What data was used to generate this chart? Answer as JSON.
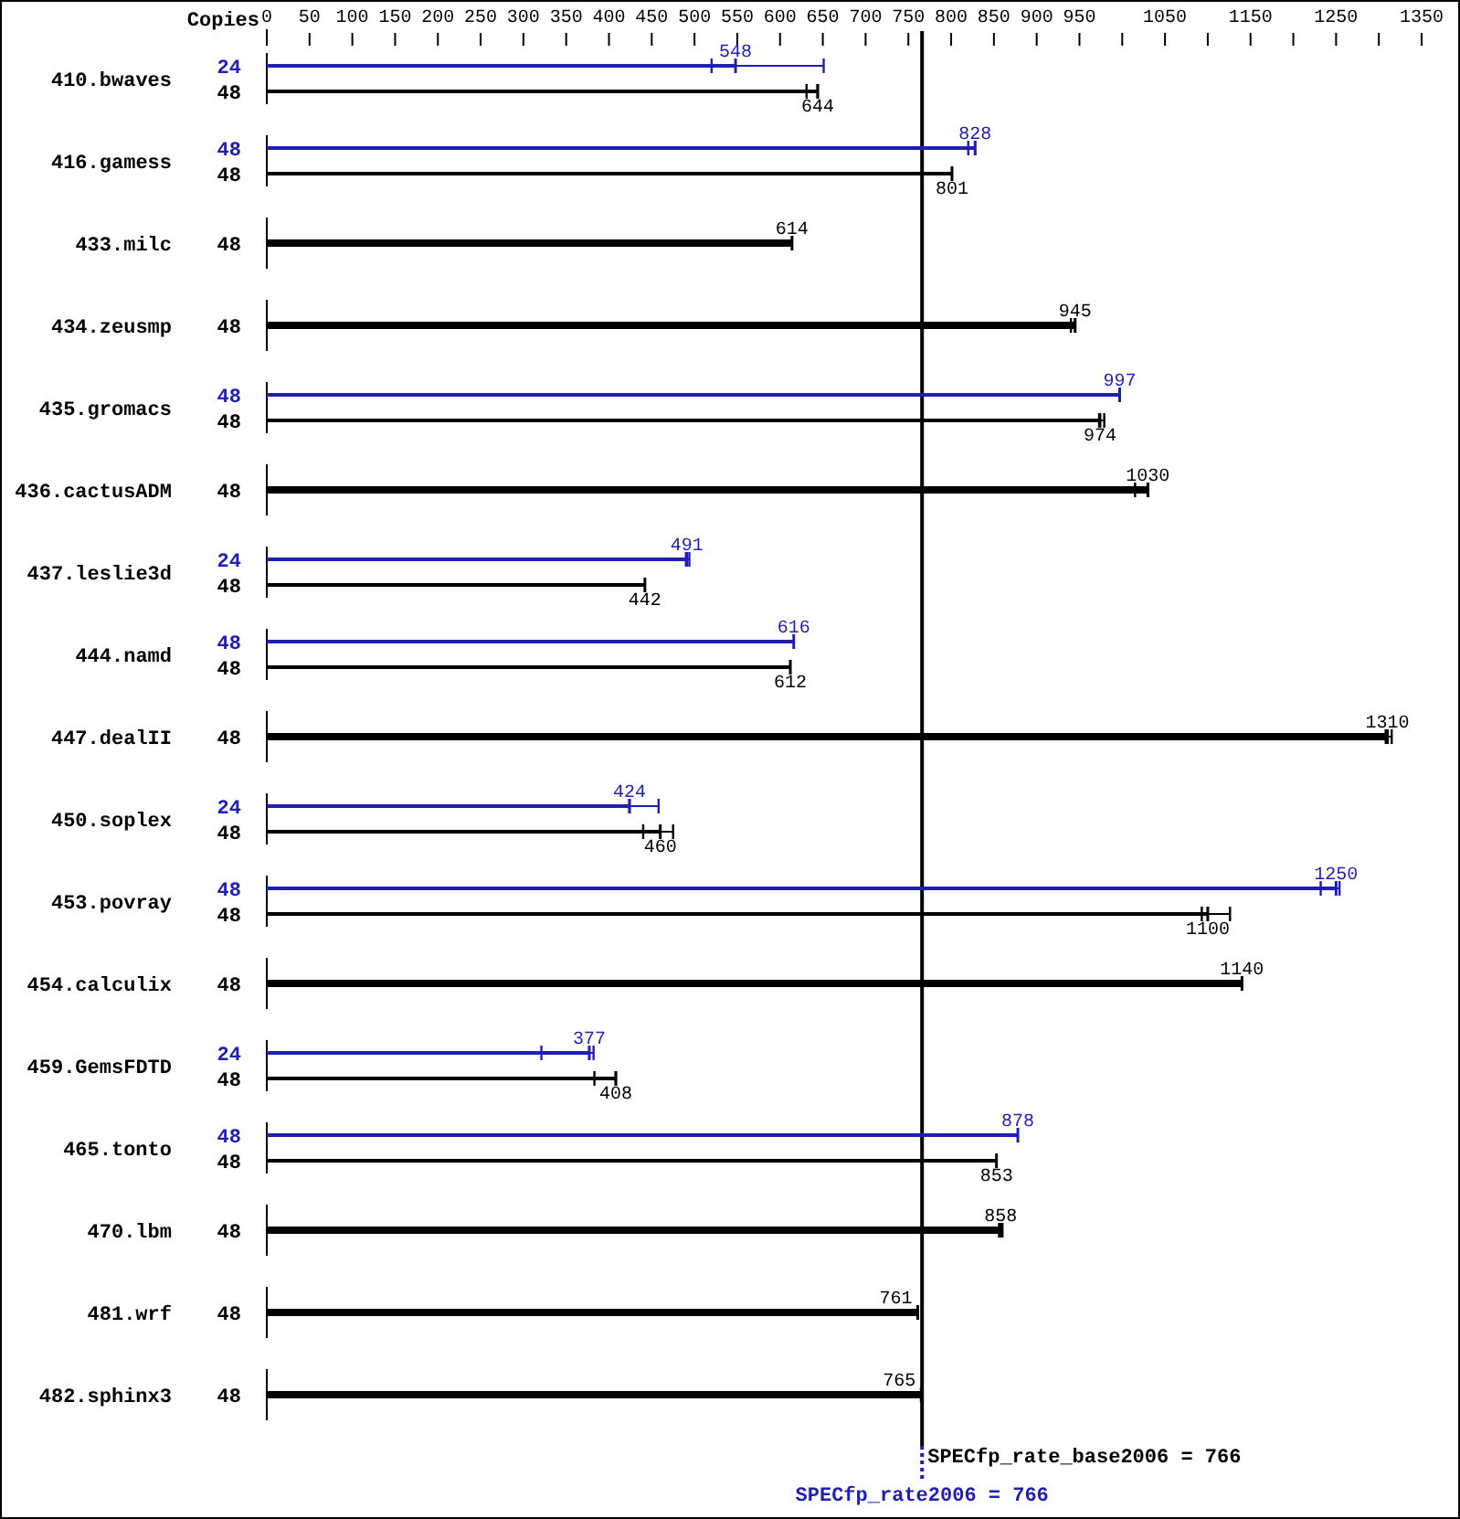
{
  "chart_data": {
    "type": "bar",
    "orientation": "horizontal",
    "ylabel": "Copies",
    "categories": [
      "410.bwaves",
      "416.gamess",
      "433.milc",
      "434.zeusmp",
      "435.gromacs",
      "436.cactusADM",
      "437.leslie3d",
      "444.namd",
      "447.dealII",
      "450.soplex",
      "453.povray",
      "454.calculix",
      "459.GemsFDTD",
      "465.tonto",
      "470.lbm",
      "481.wrf",
      "482.sphinx3"
    ],
    "series": [
      {
        "color": "#1f1fb4",
        "values": [
          548,
          828,
          null,
          null,
          997,
          null,
          491,
          616,
          null,
          424,
          1250,
          null,
          377,
          878,
          null,
          null,
          null
        ],
        "errors": [
          [
            520,
            651
          ],
          [
            820,
            828
          ],
          null,
          null,
          null,
          null,
          [
            490,
            494
          ],
          null,
          null,
          [
            424,
            458
          ],
          [
            1232,
            1254
          ],
          null,
          [
            321,
            382
          ],
          null,
          null,
          null,
          null
        ]
      },
      {
        "color": "#000000",
        "values": [
          644,
          801,
          614,
          945,
          974,
          1030,
          442,
          612,
          1310,
          460,
          1100,
          1140,
          408,
          853,
          858,
          761,
          765
        ],
        "errors": [
          [
            631,
            644
          ],
          null,
          null,
          [
            940,
            945
          ],
          [
            973,
            979
          ],
          [
            1015,
            1030
          ],
          null,
          null,
          [
            1308,
            1315
          ],
          [
            440,
            475
          ],
          [
            1093,
            1126
          ],
          null,
          [
            383,
            408
          ],
          null,
          [
            856,
            860
          ],
          null,
          null
        ]
      }
    ],
    "annotations": [
      "24",
      "48",
      "48",
      "48",
      "48",
      "48",
      "48",
      "48",
      "48",
      "24",
      "48",
      "48",
      "48",
      "48",
      "24",
      "48",
      "48",
      "48",
      "48",
      "24",
      "48",
      "48",
      "48",
      "48",
      "48",
      "48"
    ],
    "xlim": [
      0,
      1350
    ],
    "xticks": [
      0,
      50,
      100,
      150,
      200,
      250,
      300,
      350,
      400,
      450,
      500,
      550,
      600,
      650,
      700,
      750,
      800,
      850,
      900,
      950,
      {
        "value": 1000,
        "label": null
      },
      1050,
      {
        "value": 1100,
        "label": null
      },
      1150,
      {
        "value": 1200,
        "label": null
      },
      1250,
      {
        "value": 1300,
        "label": null
      },
      1350
    ],
    "ref_lines": [
      {
        "axis": "x",
        "value": 766,
        "label": "SPECfp_rate_base2006 = 766",
        "color": "#000000",
        "line_style": "solid"
      },
      {
        "axis": "x",
        "value": 766,
        "label": "SPECfp_rate2006 = 766",
        "color": "#1f1fb4",
        "line_style": "dotted"
      }
    ],
    "data_labels": true
  }
}
